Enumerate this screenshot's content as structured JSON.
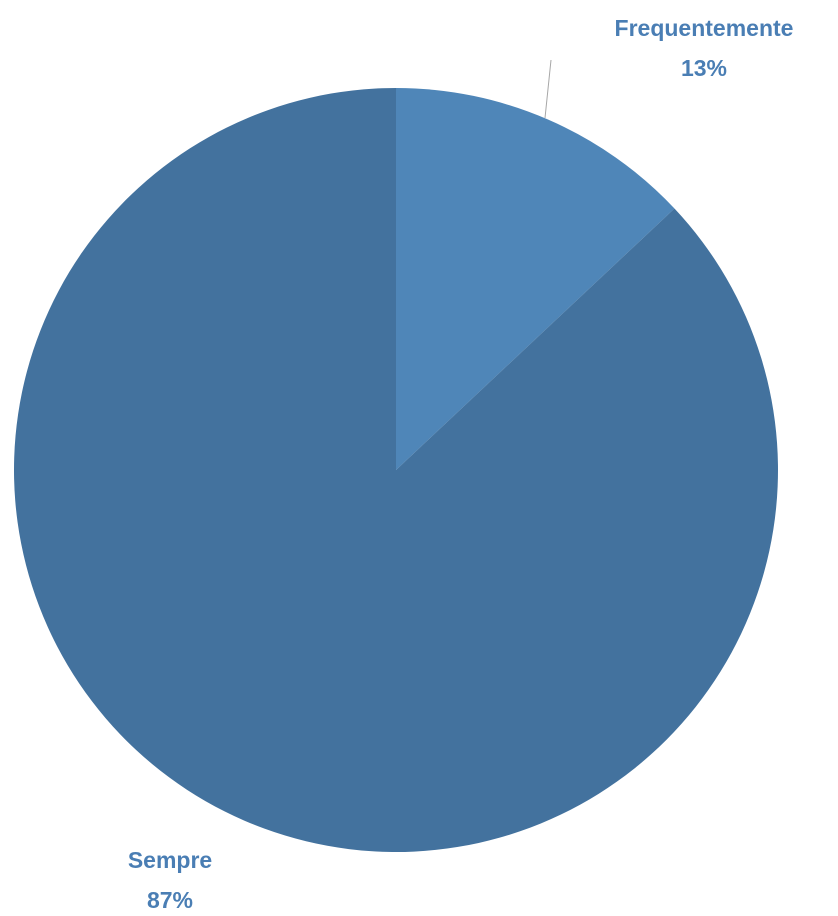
{
  "chart_data": {
    "type": "pie",
    "categories": [
      "Frequentemente",
      "Sempre"
    ],
    "values": [
      13,
      87
    ],
    "labels": [
      {
        "name": "Frequentemente",
        "value_text": "13%"
      },
      {
        "name": "Sempre",
        "value_text": "87%"
      }
    ],
    "colors": [
      "#4f86b8",
      "#43729e"
    ],
    "label_color": "#4a7eb4",
    "leader_line_color": "#a6a6a6",
    "start_angle": "12 o'clock",
    "direction": "clockwise",
    "legend": "none"
  }
}
